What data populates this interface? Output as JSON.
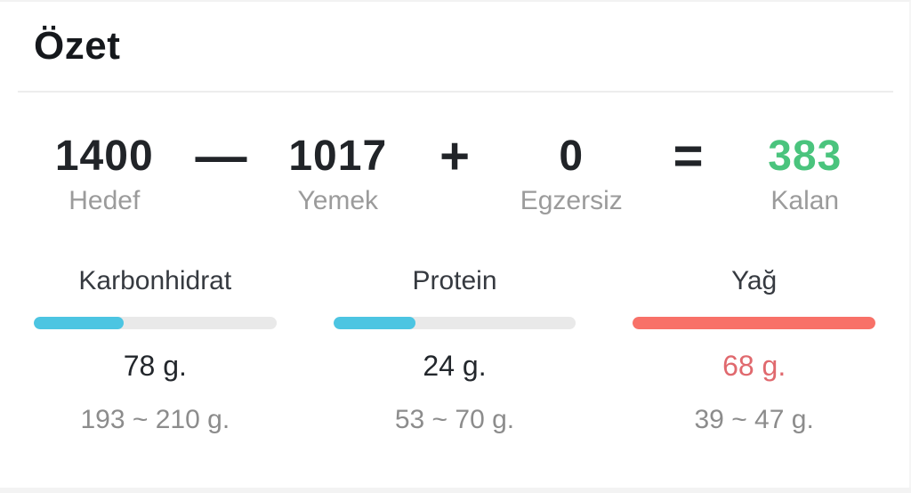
{
  "card": {
    "title": "Özet"
  },
  "equation": {
    "columns": [
      {
        "value": "1400",
        "label": "Hedef"
      },
      {
        "value": "1017",
        "label": "Yemek"
      },
      {
        "value": "0",
        "label": "Egzersiz"
      },
      {
        "value": "383",
        "label": "Kalan"
      }
    ],
    "operators": [
      "—",
      "+",
      "="
    ],
    "remaining_value_color": "#4ac47d"
  },
  "macros": {
    "track_color": "#e9e9e9",
    "items": [
      {
        "name": "Karbonhidrat",
        "consumed": "78 g.",
        "target_range": "193 ~ 210 g.",
        "bar_fill": "37%",
        "bar_color": "#4cc5e2",
        "value_color": "#23272c"
      },
      {
        "name": "Protein",
        "consumed": "24 g.",
        "target_range": "53 ~ 70 g.",
        "bar_fill": "34%",
        "bar_color": "#4cc5e2",
        "value_color": "#23272c"
      },
      {
        "name": "Yağ",
        "consumed": "68 g.",
        "target_range": "39 ~ 47 g.",
        "bar_fill": "100%",
        "bar_color": "#f87168",
        "value_color": "#e0696e"
      }
    ]
  }
}
